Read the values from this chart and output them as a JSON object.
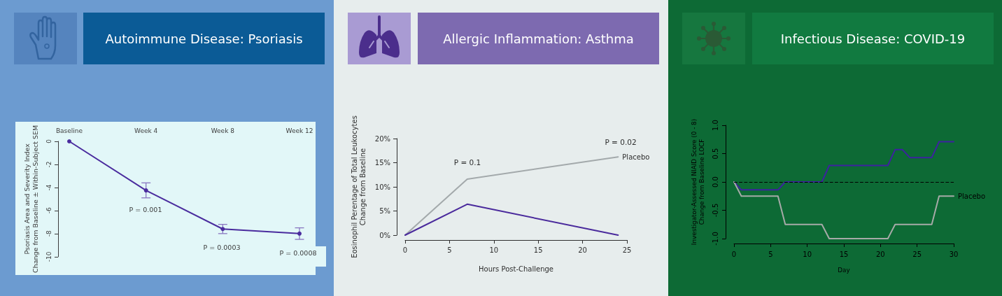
{
  "chart_data": [
    {
      "type": "line",
      "title": "Autoimmune Disease: Psoriasis",
      "ylabel": "Psoriasis Area and Severity Index\nChange from Baseline ± Within-Subject SEM",
      "categories": [
        "Baseline",
        "Week 4",
        "Week 8",
        "Week 12"
      ],
      "series": [
        {
          "color": "#4a2c9e",
          "values": [
            0,
            -4.25,
            -7.6,
            -8.0
          ],
          "errors": [
            null,
            [
              -4.9,
              -3.6
            ],
            [
              -8.0,
              -7.2
            ],
            [
              -8.5,
              -7.5
            ]
          ]
        }
      ],
      "ylim": [
        -10,
        0
      ],
      "yticks": [
        -10,
        -8,
        -6,
        -4,
        -2,
        0
      ],
      "grid": false,
      "marker": "circle",
      "line_style": "solid",
      "annotations": [
        "P = 0.001",
        "P = 0.0003",
        "P = 0.0008"
      ]
    },
    {
      "type": "line",
      "title": "Allergic Inflammation: Asthma",
      "xlabel": "Hours Post-Challenge",
      "ylabel": "Eosinophil Perentage of Total Leukocytes\nChange from Baseline",
      "x": [
        0,
        7,
        24
      ],
      "series": [
        {
          "name": "Placebo",
          "color": "#a3a9ab",
          "values": [
            0,
            11.6,
            16.2
          ]
        },
        {
          "color": "#4a2a9c",
          "values": [
            0,
            6.4,
            0
          ]
        }
      ],
      "xlim": [
        0,
        25
      ],
      "xticks": [
        0,
        5,
        10,
        15,
        20,
        25
      ],
      "ylim": [
        0,
        20
      ],
      "yticks": [
        {
          "value": 0,
          "label": "0%"
        },
        {
          "value": 5,
          "label": "5%"
        },
        {
          "value": 10,
          "label": "10%"
        },
        {
          "value": 15,
          "label": "15%"
        },
        {
          "value": 20,
          "label": "20%"
        }
      ],
      "grid": false,
      "line_style": "solid",
      "annotations": [
        "P = 0.1",
        "P = 0.02"
      ]
    },
    {
      "type": "line",
      "title": "Infectious Disease: COVID-19",
      "xlabel": "Day",
      "ylabel": "Investigator-Assessed NIAID Score (0 - 8)\nChange from Baseline LOCF",
      "series": [
        {
          "color": "#3d22a0",
          "x": [
            0,
            1,
            6,
            7,
            12,
            13,
            21,
            22,
            23,
            24,
            27,
            28,
            30
          ],
          "values": [
            0,
            -0.14,
            -0.14,
            0,
            0,
            0.29,
            0.29,
            0.57,
            0.57,
            0.43,
            0.43,
            0.71,
            0.71
          ]
        },
        {
          "name": "Placebo",
          "color": "#a6aaa8",
          "x": [
            0,
            1,
            6,
            7,
            12,
            13,
            21,
            22,
            27,
            28,
            30
          ],
          "values": [
            0,
            -0.25,
            -0.25,
            -0.75,
            -0.75,
            -1,
            -1,
            -0.75,
            -0.75,
            -0.25,
            -0.25
          ]
        }
      ],
      "xlim": [
        0,
        30
      ],
      "xticks": [
        0,
        5,
        10,
        15,
        20,
        25,
        30
      ],
      "ylim": [
        -1,
        1
      ],
      "yticks": [
        {
          "value": -1,
          "label": "-1.0"
        },
        {
          "value": -0.5,
          "label": "-0.5"
        },
        {
          "value": 0,
          "label": "0.0"
        },
        {
          "value": 0.5,
          "label": "0.5"
        },
        {
          "value": 1,
          "label": "1.0"
        }
      ],
      "grid": false,
      "line_style": "solid",
      "ref_lines": [
        {
          "axis": "y",
          "value": 0,
          "color": "#000000",
          "line_style": "dashed"
        }
      ]
    }
  ]
}
